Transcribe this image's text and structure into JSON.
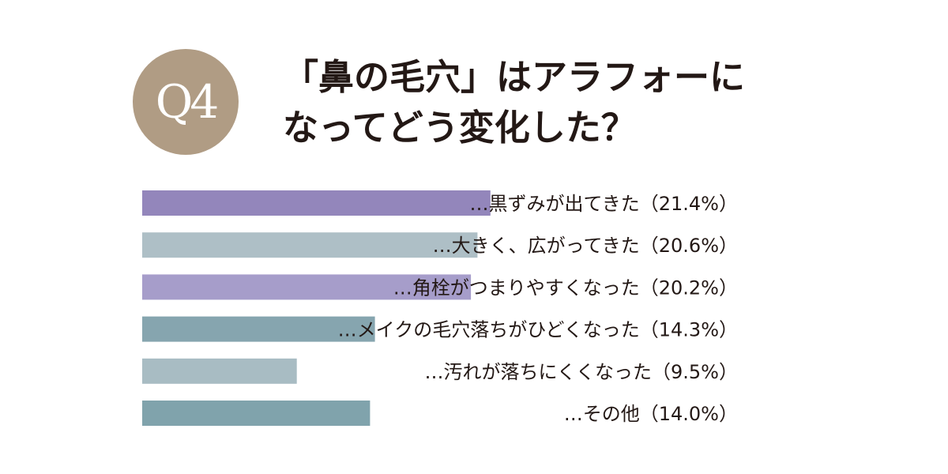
{
  "question_badge": "Q4",
  "title": {
    "line1": "「鼻の毛穴」はアラフォーに",
    "line2": "なってどう変化した？"
  },
  "chart_data": {
    "type": "bar",
    "orientation": "horizontal",
    "categories": [
      "…黒ずみが出てきた（21.4%）",
      "…大きく、広がってきた（20.6%）",
      "…角栓がつまりやすくなった（20.2%）",
      "…メイクの毛穴落ちがひどくなった（14.3%）",
      "…汚れが落ちにくくなった（9.5%）",
      "…その他（14.0%）"
    ],
    "values": [
      21.4,
      20.6,
      20.2,
      14.3,
      9.5,
      14.0
    ],
    "unit": "%",
    "colors": [
      "#9386bb",
      "#aebfc6",
      "#a69dca",
      "#86a5af",
      "#a8bcc3",
      "#80a3ac"
    ],
    "label_color": "#231815"
  }
}
